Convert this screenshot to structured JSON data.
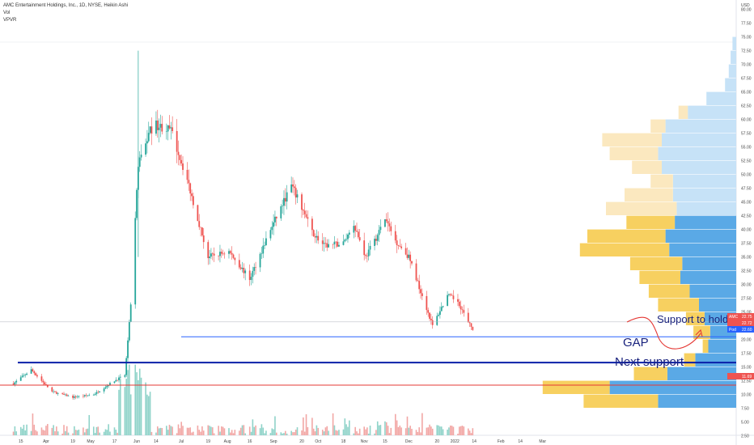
{
  "header": {
    "title": "AMC Entertainment Holdings, Inc., 1D, NYSE, Heikin Ashi",
    "vol": "Vol",
    "vpvr": "VPVR"
  },
  "chart_data": {
    "type": "candlestick",
    "symbol": "AMC",
    "currency": "USD",
    "ylim": [
      0,
      80
    ],
    "y_ticks": [
      "2.50",
      "5.00",
      "7.50",
      "10.00",
      "12.50",
      "15.00",
      "17.50",
      "20.00",
      "22.50",
      "25.00",
      "27.50",
      "30.00",
      "32.50",
      "35.00",
      "37.50",
      "40.00",
      "42.50",
      "45.00",
      "47.50",
      "50.00",
      "52.50",
      "55.00",
      "57.50",
      "60.00",
      "62.50",
      "65.00",
      "67.50",
      "70.00",
      "72.50",
      "75.00",
      "77.50",
      "80.00"
    ],
    "x_ticks": [
      "15",
      "Apr",
      "19",
      "May",
      "17",
      "Jun",
      "14",
      "Jul",
      "19",
      "Aug",
      "16",
      "Sep",
      "20",
      "Oct",
      "18",
      "Nov",
      "15",
      "Dec",
      "20",
      "2022",
      "14",
      "Feb",
      "14",
      "Mar"
    ],
    "price_path": [
      {
        "date": "2021-03-10",
        "close": 12.0
      },
      {
        "date": "2021-03-22",
        "close": 14.5
      },
      {
        "date": "2021-04-05",
        "close": 10.5
      },
      {
        "date": "2021-04-19",
        "close": 9.5
      },
      {
        "date": "2021-05-03",
        "close": 10.0
      },
      {
        "date": "2021-05-17",
        "close": 12.5
      },
      {
        "date": "2021-05-24",
        "close": 13.5
      },
      {
        "date": "2021-05-28",
        "close": 26.0
      },
      {
        "date": "2021-06-02",
        "close": 52.0
      },
      {
        "date": "2021-06-10",
        "close": 58.0
      },
      {
        "date": "2021-06-14",
        "close": 59.0
      },
      {
        "date": "2021-06-24",
        "close": 58.0
      },
      {
        "date": "2021-07-05",
        "close": 49.0
      },
      {
        "date": "2021-07-19",
        "close": 35.0
      },
      {
        "date": "2021-08-02",
        "close": 36.0
      },
      {
        "date": "2021-08-16",
        "close": 31.0
      },
      {
        "date": "2021-08-30",
        "close": 40.0
      },
      {
        "date": "2021-09-13",
        "close": 48.0
      },
      {
        "date": "2021-09-20",
        "close": 44.0
      },
      {
        "date": "2021-09-27",
        "close": 39.5
      },
      {
        "date": "2021-10-05",
        "close": 37.0
      },
      {
        "date": "2021-10-18",
        "close": 37.5
      },
      {
        "date": "2021-10-25",
        "close": 41.0
      },
      {
        "date": "2021-11-02",
        "close": 35.0
      },
      {
        "date": "2021-11-10",
        "close": 39.0
      },
      {
        "date": "2021-11-15",
        "close": 42.0
      },
      {
        "date": "2021-11-22",
        "close": 38.0
      },
      {
        "date": "2021-12-01",
        "close": 35.0
      },
      {
        "date": "2021-12-10",
        "close": 28.0
      },
      {
        "date": "2021-12-17",
        "close": 22.5
      },
      {
        "date": "2021-12-27",
        "close": 28.0
      },
      {
        "date": "2022-01-03",
        "close": 27.0
      },
      {
        "date": "2022-01-10",
        "close": 23.0
      },
      {
        "date": "2022-01-13",
        "close": 22.0
      }
    ],
    "last_price_labels": [
      {
        "label": "AMC",
        "value": "22.75",
        "color": "#ef5350"
      },
      {
        "label": "",
        "value": "22.72",
        "color": "#ef5350"
      },
      {
        "label": "Pod",
        "value": "22.60",
        "color": "#2962ff"
      },
      {
        "label": "",
        "value": "11.69",
        "color": "#ef5350"
      }
    ],
    "lines": [
      {
        "name": "support-line",
        "value": 20.5,
        "color": "#2962ff"
      },
      {
        "name": "next-support-line",
        "value": 15.8,
        "color": "#0a1fa8"
      },
      {
        "name": "red-line",
        "value": 11.7,
        "color": "#e53935"
      }
    ],
    "annotations": [
      {
        "text": "Support to hold",
        "color": "#1a237e"
      },
      {
        "text": "GAP",
        "color": "#1a237e"
      },
      {
        "text": "Next support",
        "color": "#1a237e"
      }
    ],
    "vpvr_profile": [
      {
        "low": 72.5,
        "high": 75.0,
        "up": 0.02,
        "down": 0.0
      },
      {
        "low": 70.0,
        "high": 72.5,
        "up": 0.03,
        "down": 0.0
      },
      {
        "low": 67.5,
        "high": 70.0,
        "up": 0.04,
        "down": 0.0
      },
      {
        "low": 65.0,
        "high": 67.5,
        "up": 0.06,
        "down": 0.0
      },
      {
        "low": 62.5,
        "high": 65.0,
        "up": 0.16,
        "down": 0.0
      },
      {
        "low": 60.0,
        "high": 62.5,
        "up": 0.26,
        "down": 0.05
      },
      {
        "low": 57.5,
        "high": 60.0,
        "up": 0.38,
        "down": 0.08
      },
      {
        "low": 55.0,
        "high": 57.5,
        "up": 0.4,
        "down": 0.32
      },
      {
        "low": 52.5,
        "high": 55.0,
        "up": 0.42,
        "down": 0.26
      },
      {
        "low": 50.0,
        "high": 52.5,
        "up": 0.4,
        "down": 0.16
      },
      {
        "low": 47.5,
        "high": 50.0,
        "up": 0.34,
        "down": 0.12
      },
      {
        "low": 45.0,
        "high": 47.5,
        "up": 0.34,
        "down": 0.26
      },
      {
        "low": 42.5,
        "high": 45.0,
        "up": 0.32,
        "down": 0.38
      },
      {
        "low": 40.0,
        "high": 42.5,
        "up": 0.33,
        "down": 0.26
      },
      {
        "low": 37.5,
        "high": 40.0,
        "up": 0.38,
        "down": 0.42
      },
      {
        "low": 35.0,
        "high": 37.5,
        "up": 0.36,
        "down": 0.48
      },
      {
        "low": 32.5,
        "high": 35.0,
        "up": 0.29,
        "down": 0.28
      },
      {
        "low": 30.0,
        "high": 32.5,
        "up": 0.3,
        "down": 0.22
      },
      {
        "low": 27.5,
        "high": 30.0,
        "up": 0.25,
        "down": 0.22
      },
      {
        "low": 25.0,
        "high": 27.5,
        "up": 0.2,
        "down": 0.22
      },
      {
        "low": 22.5,
        "high": 25.0,
        "up": 0.17,
        "down": 0.1
      },
      {
        "low": 20.0,
        "high": 22.5,
        "up": 0.14,
        "down": 0.09
      },
      {
        "low": 17.5,
        "high": 20.0,
        "up": 0.15,
        "down": 0.03
      },
      {
        "low": 15.0,
        "high": 17.5,
        "up": 0.22,
        "down": 0.06
      },
      {
        "low": 12.5,
        "high": 15.0,
        "up": 0.37,
        "down": 0.18
      },
      {
        "low": 10.0,
        "high": 12.5,
        "up": 0.68,
        "down": 0.36
      },
      {
        "low": 7.5,
        "high": 10.0,
        "up": 0.42,
        "down": 0.4
      }
    ],
    "colors": {
      "up": "#26a69a",
      "down": "#ef5350",
      "vol_up": "#8fd3c9",
      "vol_down": "#f2a7a5",
      "vpvr_up": "#5aa9e6",
      "vpvr_down": "#f7d060",
      "vpvr_up_light": "#c6e2f7",
      "vpvr_down_light": "#fbe8bf"
    }
  }
}
